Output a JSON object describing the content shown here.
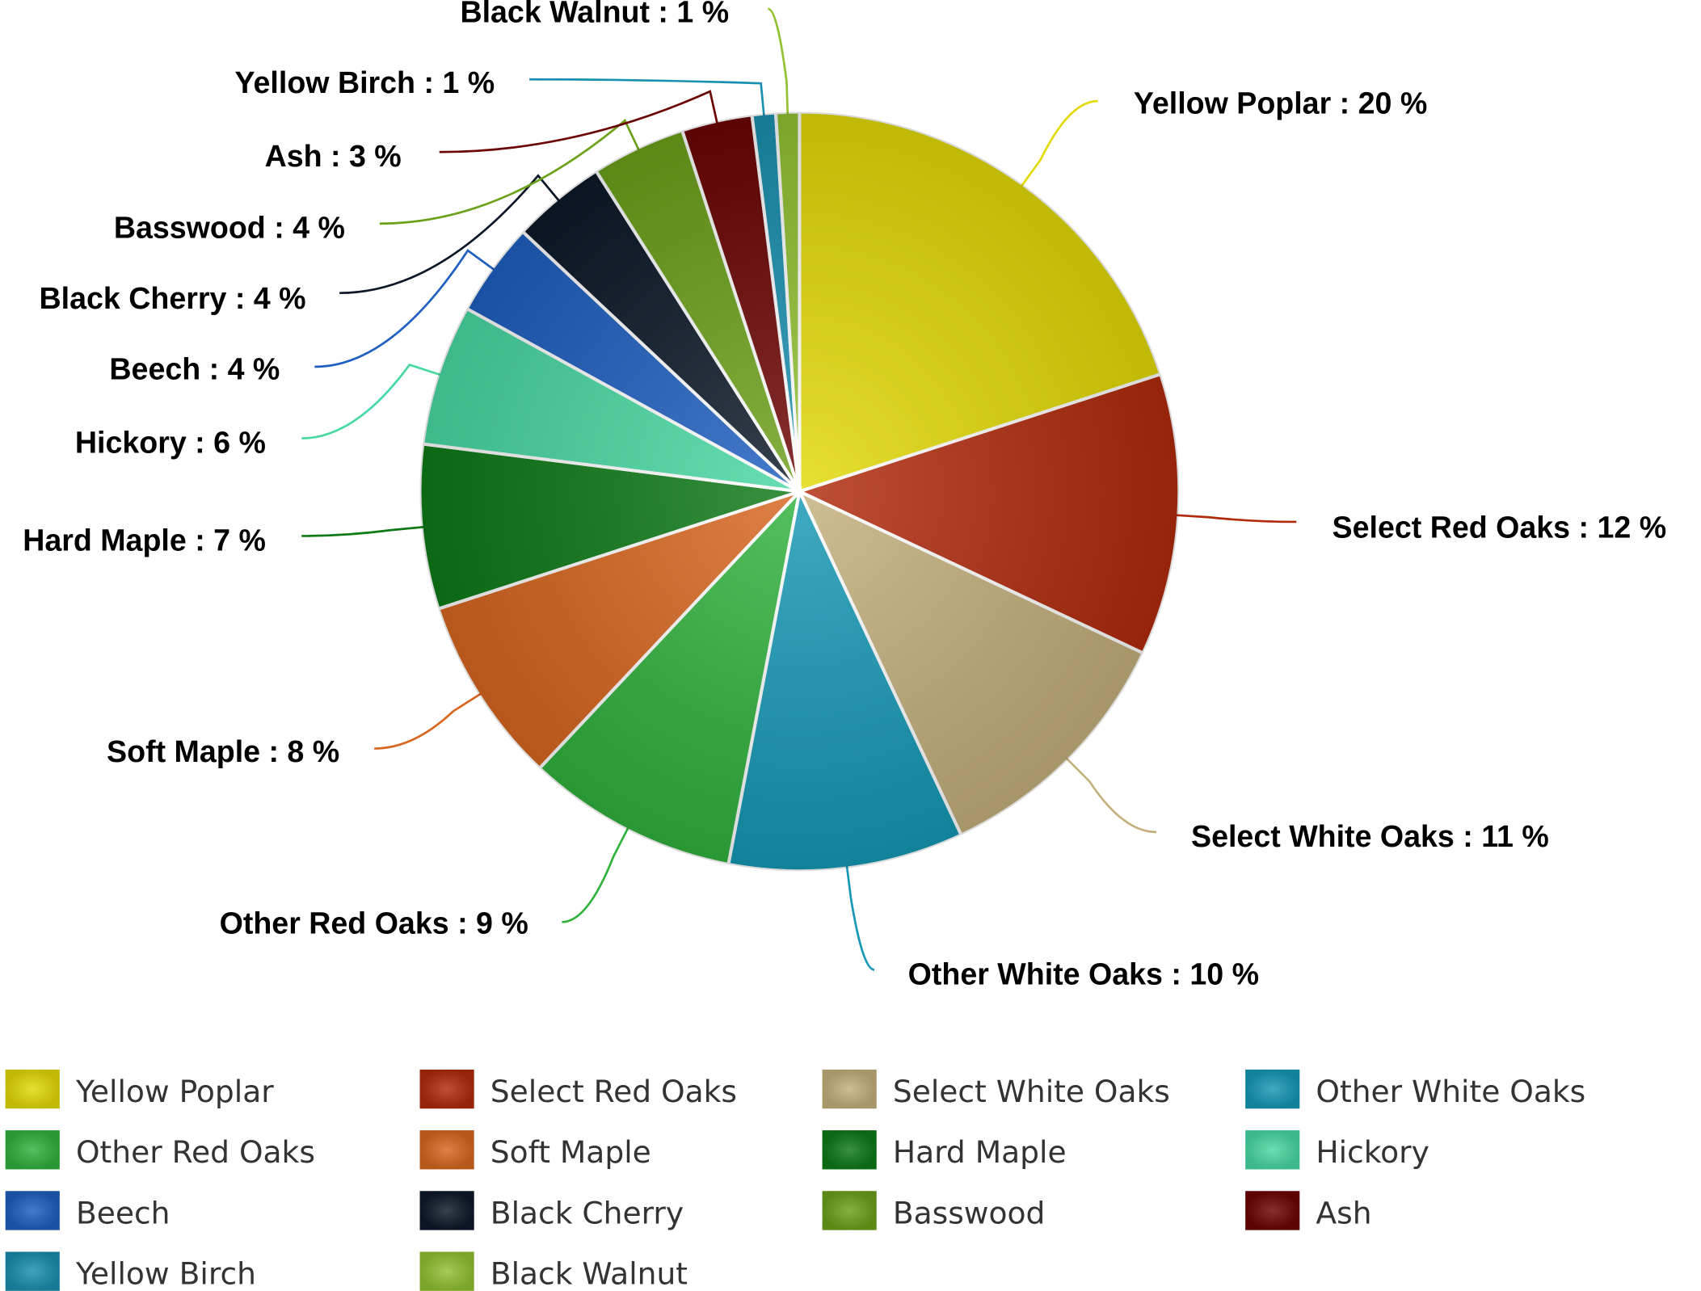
{
  "chart_data": {
    "type": "pie",
    "categories": [
      "Yellow Poplar",
      "Select Red Oaks",
      "Select White Oaks",
      "Other White Oaks",
      "Other Red Oaks",
      "Soft Maple",
      "Hard Maple",
      "Hickory",
      "Beech",
      "Black Cherry",
      "Basswood",
      "Ash",
      "Yellow Birch",
      "Black Walnut"
    ],
    "values": [
      20,
      12,
      11,
      10,
      9,
      8,
      7,
      6,
      4,
      4,
      4,
      3,
      1,
      1
    ],
    "value_labels": [
      "Yellow Poplar : 20 %",
      "Select Red Oaks : 12 %",
      "Select White Oaks : 11 %",
      "Other White Oaks : 10 %",
      "Other Red Oaks : 9 %",
      "Soft Maple : 8 %",
      "Hard Maple : 7 %",
      "Hickory : 6 %",
      "Beech : 4 %",
      "Black Cherry : 4 %",
      "Basswood : 4 %",
      "Ash : 3 %",
      "Yellow Birch : 1 %",
      "Black Walnut : 1 %"
    ],
    "colors": [
      "#e2da06",
      "#b02a0c",
      "#c4b07c",
      "#1599b6",
      "#30b23c",
      "#d8661f",
      "#0d7a16",
      "#48d9a2",
      "#1f5fc0",
      "#0c1828",
      "#6ca11a",
      "#6c0404",
      "#1a90b0",
      "#92c232"
    ],
    "legend": "bottom"
  }
}
